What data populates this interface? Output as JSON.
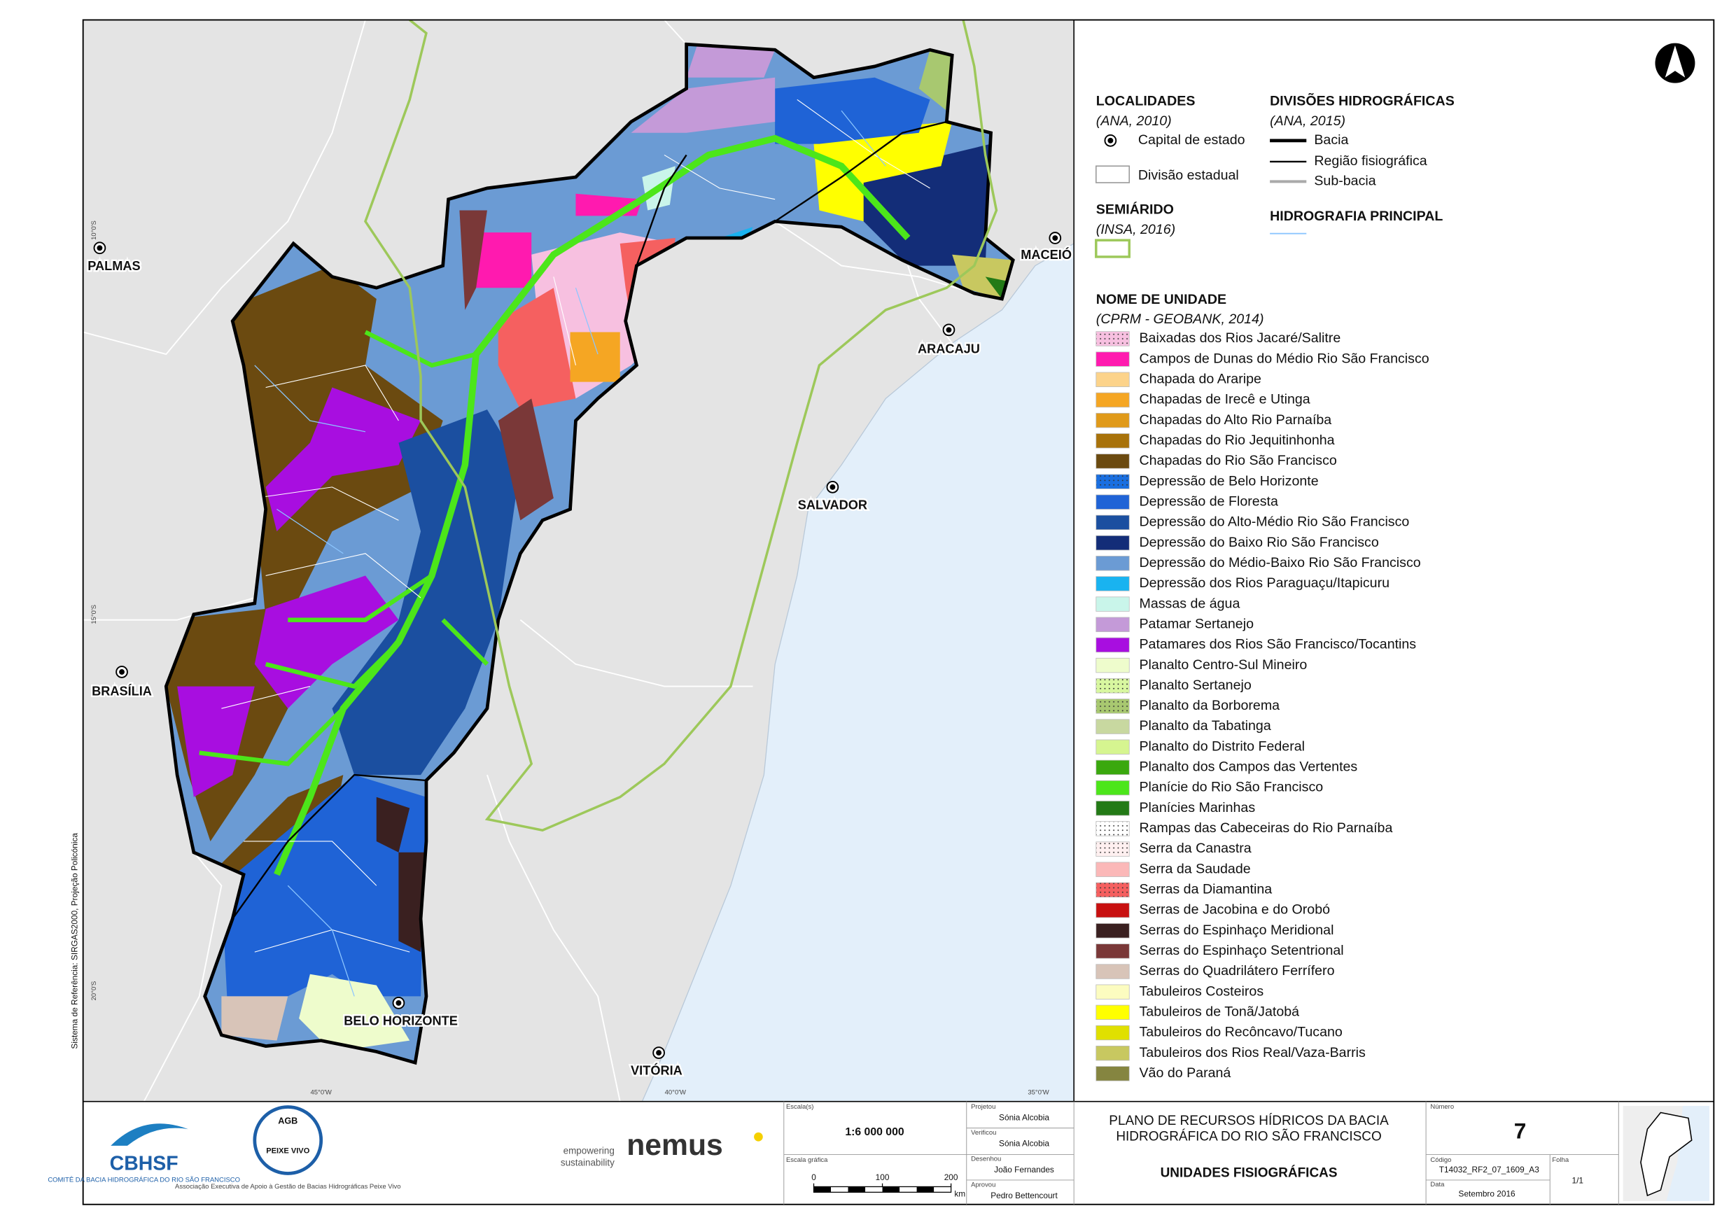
{
  "map": {
    "cities": [
      {
        "name": "PALMAS"
      },
      {
        "name": "BRASÍLIA"
      },
      {
        "name": "BELO HORIZONTE"
      },
      {
        "name": "VITÓRIA"
      },
      {
        "name": "SALVADOR"
      },
      {
        "name": "ARACAJU"
      },
      {
        "name": "MACEIÓ"
      }
    ],
    "graticule": [
      "10°0'S",
      "15°0'S",
      "20°0'S",
      "45°0'W",
      "40°0'W",
      "35°0'W"
    ],
    "crs": "Sistema de Referência: SIRGAS2000, Projeção Policónica"
  },
  "legend": {
    "localidades": {
      "title": "LOCALIDADES",
      "source": "(ANA, 2010)",
      "item": "Capital de estado"
    },
    "divisao_estadual": "Divisão estadual",
    "semiarido": {
      "title": "SEMIÁRIDO",
      "source": "(INSA, 2016)"
    },
    "divisoes": {
      "title": "DIVISÕES HIDROGRÁFICAS",
      "source": "(ANA, 2015)",
      "items": [
        "Bacia",
        "Região fisiográfica",
        "Sub-bacia"
      ]
    },
    "hidrografia": "HIDROGRAFIA PRINCIPAL",
    "unidades": {
      "title": "NOME DE UNIDADE",
      "source": "(CPRM - GEOBANK, 2014)",
      "items": [
        {
          "name": "Baixadas dos Rios Jacaré/Salitre",
          "color": "#f7c0e0",
          "dotted": true
        },
        {
          "name": "Campos de Dunas do Médio Rio São Francisco",
          "color": "#ff1aaf"
        },
        {
          "name": "Chapada do Araripe",
          "color": "#fcd38a"
        },
        {
          "name": "Chapadas de Irecê e Utinga",
          "color": "#f5a623"
        },
        {
          "name": "Chapadas do Alto Rio Parnaíba",
          "color": "#e09a1a"
        },
        {
          "name": "Chapadas do Rio Jequitinhonha",
          "color": "#a8720a"
        },
        {
          "name": "Chapadas do Rio São Francisco",
          "color": "#6b4a10"
        },
        {
          "name": "Depressão de Belo Horizonte",
          "color": "#1a6fe0",
          "dotted": true
        },
        {
          "name": "Depressão de Floresta",
          "color": "#1f63d6"
        },
        {
          "name": "Depressão do Alto-Médio Rio São Francisco",
          "color": "#1b4fa0"
        },
        {
          "name": "Depressão do Baixo Rio São Francisco",
          "color": "#132d78"
        },
        {
          "name": "Depressão do Médio-Baixo Rio São Francisco",
          "color": "#6b9bd4"
        },
        {
          "name": "Depressão dos Rios Paraguaçu/Itapicuru",
          "color": "#19b3f0"
        },
        {
          "name": "Massas de água",
          "color": "#c9f5ea"
        },
        {
          "name": "Patamar Sertanejo",
          "color": "#c49ad8"
        },
        {
          "name": "Patamares dos Rios São Francisco/Tocantins",
          "color": "#a80ee0"
        },
        {
          "name": "Planalto Centro-Sul Mineiro",
          "color": "#eefccc"
        },
        {
          "name": "Planalto Sertanejo",
          "color": "#d8f7a0",
          "dotted": true
        },
        {
          "name": "Planalto da Borborema",
          "color": "#a8c870",
          "dotted": true
        },
        {
          "name": "Planalto da Tabatinga",
          "color": "#c8d8a0"
        },
        {
          "name": "Planalto do Distrito Federal",
          "color": "#d6f590"
        },
        {
          "name": "Planalto dos Campos das Vertentes",
          "color": "#3aa80e"
        },
        {
          "name": "Planície do Rio São Francisco",
          "color": "#4ce61a"
        },
        {
          "name": "Planícies Marinhas",
          "color": "#237a16"
        },
        {
          "name": "Rampas das Cabeceiras do Rio Parnaíba",
          "color": "#ffffff",
          "dotted": true
        },
        {
          "name": "Serra da Canastra",
          "color": "#fff0f0",
          "dotted": true
        },
        {
          "name": "Serra da Saudade",
          "color": "#fbb8b8"
        },
        {
          "name": "Serras da Diamantina",
          "color": "#f56060",
          "dotted": true
        },
        {
          "name": "Serras de Jacobina e do Orobó",
          "color": "#c81010"
        },
        {
          "name": "Serras do Espinhaço Meridional",
          "color": "#3a2020"
        },
        {
          "name": "Serras do Espinhaço Setentrional",
          "color": "#7a3838"
        },
        {
          "name": "Serras do Quadrilátero Ferrífero",
          "color": "#d8c4b8"
        },
        {
          "name": "Tabuleiros Costeiros",
          "color": "#fcfcc0"
        },
        {
          "name": "Tabuleiros de Tonã/Jatobá",
          "color": "#ffff00"
        },
        {
          "name": "Tabuleiros do Recôncavo/Tucano",
          "color": "#e0e000"
        },
        {
          "name": "Tabuleiros dos Rios Real/Vaza-Barris",
          "color": "#c8c860"
        },
        {
          "name": "Vão do Paraná",
          "color": "#858540"
        }
      ]
    }
  },
  "footer": {
    "cbhsf": {
      "name": "CBHSF",
      "subtitle": "COMITÊ DA BACIA HIDROGRÁFICA DO RIO SÃO FRANCISCO"
    },
    "agb": {
      "name": "AGB",
      "brand": "PEIXE VIVO",
      "subtitle": "Associação Executiva de Apoio à Gestão de Bacias Hidrográficas Peixe Vivo"
    },
    "nemus": {
      "tagline": [
        "empowering",
        "sustainability"
      ],
      "name": "nemus"
    },
    "scale": {
      "label": "Escala(s)",
      "value": "1:6 000 000",
      "graphic_label": "Escala gráfica",
      "bar_ticks": [
        0,
        100,
        200
      ],
      "unit": "km"
    },
    "signoff": [
      {
        "role": "Projetou",
        "name": "Sónia Alcobia"
      },
      {
        "role": "Verificou",
        "name": "Sónia Alcobia"
      },
      {
        "role": "Desenhou",
        "name": "João Fernandes"
      },
      {
        "role": "Aprovou",
        "name": "Pedro Bettencourt"
      }
    ],
    "title": [
      "PLANO DE RECURSOS HÍDRICOS DA BACIA",
      "HIDROGRÁFICA DO RIO SÃO FRANCISCO"
    ],
    "subtitle": "UNIDADES FISIOGRÁFICAS",
    "numero": {
      "label": "Número",
      "value": "7"
    },
    "codigo": {
      "label": "Código",
      "value": "T14032_RF2_07_1609_A3"
    },
    "folha": {
      "label": "Folha",
      "value": "1/1"
    },
    "data": {
      "label": "Data",
      "value": "Setembro 2016"
    }
  }
}
